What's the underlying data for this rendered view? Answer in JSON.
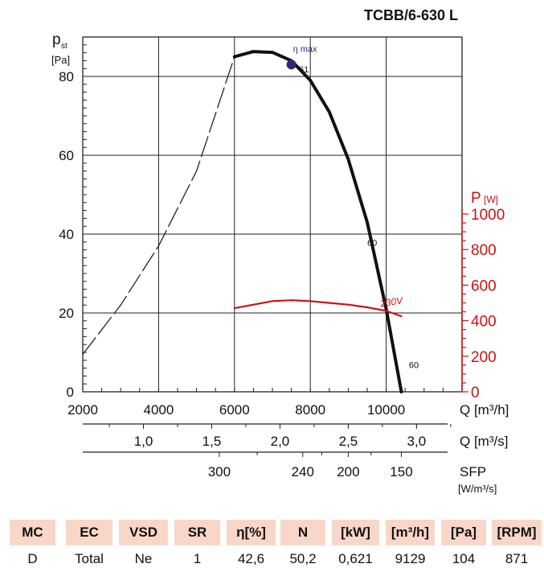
{
  "title": "TCBB/6-630 L",
  "chart_data": {
    "type": "line",
    "y_axis": {
      "label": "p",
      "label_sub": "st",
      "unit": "[Pa]",
      "range": [
        0,
        90
      ],
      "ticks": [
        0,
        20,
        40,
        60,
        80
      ]
    },
    "y2_axis": {
      "label": "P",
      "unit": "[W]",
      "range": [
        0,
        1000
      ],
      "ticks": [
        0,
        200,
        400,
        600,
        800,
        1000
      ],
      "color": "#cc1111"
    },
    "x_axes": [
      {
        "label": "Q [m³/h]",
        "range": [
          2000,
          12000
        ],
        "ticks": [
          "2000",
          "4000",
          "6000",
          "8000",
          "10000"
        ],
        "tick_values": [
          2000,
          4000,
          6000,
          8000,
          10000
        ]
      },
      {
        "label": "Q [m³/s]",
        "ticks": [
          "1,0",
          "1,5",
          "2,0",
          "2,5",
          "3,0"
        ],
        "tick_values": [
          1.0,
          1.5,
          2.0,
          2.5,
          3.0
        ]
      },
      {
        "label": "SFP",
        "unit": "[W/m³/s]",
        "ticks": [
          "300",
          "240",
          "200",
          "150"
        ],
        "tick_positions_q": [
          5600,
          7800,
          9000,
          10400
        ]
      }
    ],
    "series": [
      {
        "name": "",
        "style": "dashed",
        "color": "#222222",
        "x": [
          2000,
          3000,
          4000,
          5000,
          6000
        ],
        "y": [
          9.5,
          22,
          37,
          56,
          85
        ]
      },
      {
        "name": "",
        "style": "solid-thick",
        "color": "#111111",
        "x": [
          6000,
          6500,
          7000,
          7500,
          8000,
          8500,
          9000,
          9500,
          10000,
          10400
        ],
        "y": [
          85,
          86.3,
          86.1,
          84,
          79,
          71,
          59,
          43,
          21,
          0
        ]
      },
      {
        "name": "230V",
        "style": "solid",
        "color": "#cc1111",
        "axis": "y2",
        "x": [
          6000,
          6500,
          7000,
          7500,
          8000,
          8500,
          9000,
          9500,
          10000,
          10400
        ],
        "y": [
          470,
          490,
          510,
          515,
          510,
          500,
          490,
          475,
          455,
          425
        ]
      }
    ],
    "point": {
      "label": "η max",
      "x": 7500,
      "y": 83
    },
    "annotations": [
      {
        "text": "61",
        "x": 7700,
        "y": 81
      },
      {
        "text": "60",
        "x": 9500,
        "y": 37
      },
      {
        "text": "60",
        "x": 10600,
        "y": 6
      }
    ]
  },
  "table": {
    "headers": [
      "MC",
      "EC",
      "VSD",
      "SR",
      "η[%]",
      "N",
      "[kW]",
      "[m³/h]",
      "[Pa]",
      "[RPM]"
    ],
    "values": [
      "D",
      "Total",
      "Ne",
      "1",
      "42,6",
      "50,2",
      "0,621",
      "9129",
      "104",
      "871"
    ]
  }
}
